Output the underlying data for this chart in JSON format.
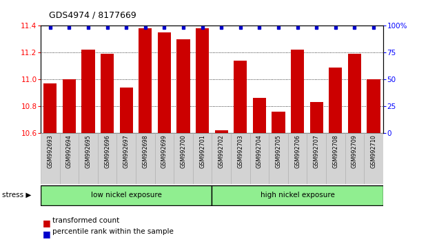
{
  "title": "GDS4974 / 8177669",
  "samples": [
    "GSM992693",
    "GSM992694",
    "GSM992695",
    "GSM992696",
    "GSM992697",
    "GSM992698",
    "GSM992699",
    "GSM992700",
    "GSM992701",
    "GSM992702",
    "GSM992703",
    "GSM992704",
    "GSM992705",
    "GSM992706",
    "GSM992707",
    "GSM992708",
    "GSM992709",
    "GSM992710"
  ],
  "bar_values": [
    10.97,
    11.0,
    11.22,
    11.19,
    10.94,
    11.38,
    11.35,
    11.3,
    11.38,
    10.62,
    11.14,
    10.86,
    10.76,
    11.22,
    10.83,
    11.09,
    11.19,
    11.0
  ],
  "percentile_values": [
    99,
    99,
    99,
    99,
    99,
    99,
    99,
    99,
    99,
    99,
    99,
    99,
    99,
    99,
    99,
    99,
    99,
    99
  ],
  "bar_color": "#cc0000",
  "percentile_color": "#0000cc",
  "ylim_left": [
    10.6,
    11.4
  ],
  "ylim_right": [
    0,
    100
  ],
  "yticks_left": [
    10.6,
    10.8,
    11.0,
    11.2,
    11.4
  ],
  "yticks_right": [
    0,
    25,
    50,
    75,
    100
  ],
  "ytick_labels_right": [
    "0",
    "25",
    "50",
    "75",
    "100%"
  ],
  "group1_label": "low nickel exposure",
  "group2_label": "high nickel exposure",
  "group1_count": 9,
  "stress_label": "stress ▶",
  "legend_bar_label": "transformed count",
  "legend_pct_label": "percentile rank within the sample",
  "bg_color": "#ffffff",
  "plot_bg_color": "#ffffff",
  "group_bg_color": "#90ee90",
  "xtick_bg_color": "#d3d3d3",
  "grid_color": "#000000"
}
